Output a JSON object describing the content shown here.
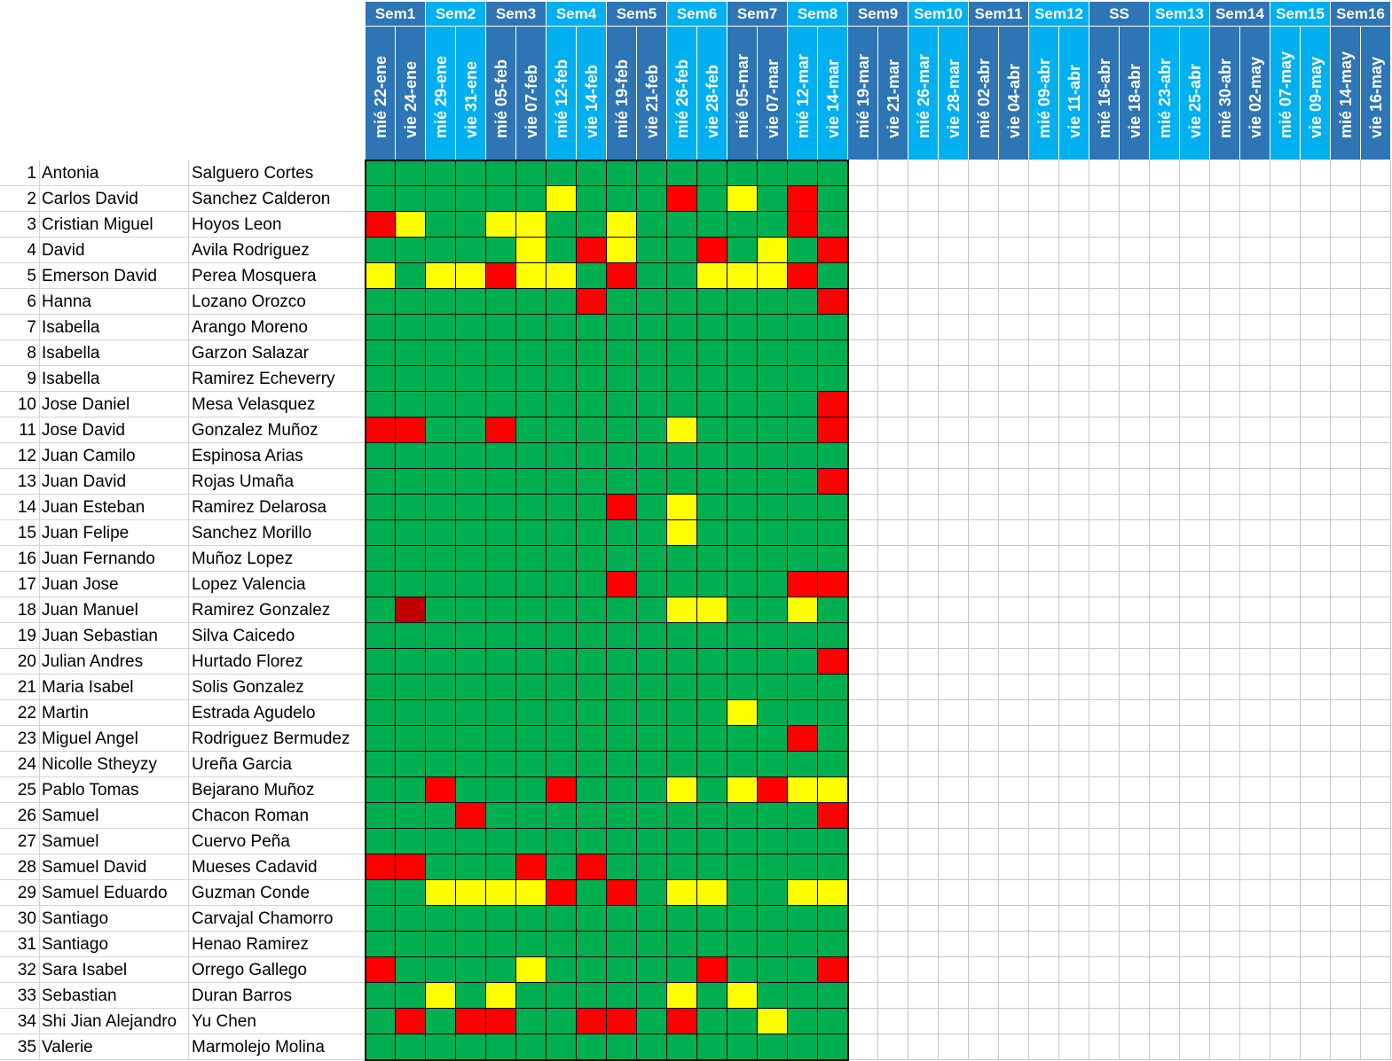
{
  "weeks": [
    {
      "label": "Sem1",
      "span": 2
    },
    {
      "label": "Sem2",
      "span": 2
    },
    {
      "label": "Sem3",
      "span": 2
    },
    {
      "label": "Sem4",
      "span": 2
    },
    {
      "label": "Sem5",
      "span": 2
    },
    {
      "label": "Sem6",
      "span": 2
    },
    {
      "label": "Sem7",
      "span": 2
    },
    {
      "label": "Sem8",
      "span": 2
    },
    {
      "label": "Sem9",
      "span": 2
    },
    {
      "label": "Sem10",
      "span": 2
    },
    {
      "label": "Sem11",
      "span": 2
    },
    {
      "label": "Sem12",
      "span": 2
    },
    {
      "label": "SS",
      "span": 2
    },
    {
      "label": "Sem13",
      "span": 2
    },
    {
      "label": "Sem14",
      "span": 2
    },
    {
      "label": "Sem15",
      "span": 2
    },
    {
      "label": "Sem16",
      "span": 2
    }
  ],
  "dates": [
    "mié 22-ene",
    "vie 24-ene",
    "mié 29-ene",
    "vie 31-ene",
    "mié 05-feb",
    "vie 07-feb",
    "mié 12-feb",
    "vie 14-feb",
    "mié 19-feb",
    "vie 21-feb",
    "mié 26-feb",
    "vie 28-feb",
    "mié 05-mar",
    "vie 07-mar",
    "mié 12-mar",
    "vie 14-mar",
    "mié 19-mar",
    "vie 21-mar",
    "mié 26-mar",
    "vie 28-mar",
    "mié 02-abr",
    "vie 04-abr",
    "mié 09-abr",
    "vie 11-abr",
    "mié 16-abr",
    "vie 18-abr",
    "mié 23-abr",
    "vie 25-abr",
    "mié 30-abr",
    "vie 02-may",
    "mié 07-may",
    "vie 09-may",
    "mié 14-may",
    "vie 16-may"
  ],
  "legend_colors": {
    "G": "#00b050",
    "Y": "#ffff00",
    "R": "#ff0000",
    "D": "#c00000"
  },
  "header_colors": {
    "week_light": "#00b0f0",
    "week_dark": "#2e75b6"
  },
  "students": [
    {
      "n": "1",
      "first": "Antonia",
      "last": "Salguero Cortes",
      "marks": "GGGGGGGGGGGGGGGG"
    },
    {
      "n": "2",
      "first": "Carlos David",
      "last": "Sanchez Calderon",
      "marks": "GGGGGGYGGGRGYGRG"
    },
    {
      "n": "3",
      "first": "Cristian Miguel",
      "last": "Hoyos Leon",
      "marks": "RYGGYYGGYGGGGGRG"
    },
    {
      "n": "4",
      "first": "David",
      "last": "Avila Rodriguez",
      "marks": "GGGGGYGRYGGRGYGR"
    },
    {
      "n": "5",
      "first": "Emerson David",
      "last": "Perea Mosquera",
      "marks": "YGYYRYYGRGGYYYRG"
    },
    {
      "n": "6",
      "first": "Hanna",
      "last": "Lozano Orozco",
      "marks": "GGGGGGGRGGGGGGGR"
    },
    {
      "n": "7",
      "first": "Isabella",
      "last": "Arango Moreno",
      "marks": "GGGGGGGGGGGGGGGG"
    },
    {
      "n": "8",
      "first": "Isabella",
      "last": "Garzon Salazar",
      "marks": "GGGGGGGGGGGGGGGG"
    },
    {
      "n": "9",
      "first": "Isabella",
      "last": "Ramirez Echeverry",
      "marks": "GGGGGGGGGGGGGGGG"
    },
    {
      "n": "10",
      "first": "Jose Daniel",
      "last": "Mesa Velasquez",
      "marks": "GGGGGGGGGGGGGGGR"
    },
    {
      "n": "11",
      "first": "Jose David",
      "last": "Gonzalez Muñoz",
      "marks": "RRGGRGGGGGYGGGGR"
    },
    {
      "n": "12",
      "first": "Juan Camilo",
      "last": "Espinosa Arias",
      "marks": "GGGGGGGGGGGGGGGG"
    },
    {
      "n": "13",
      "first": "Juan David",
      "last": "Rojas Umaña",
      "marks": "GGGGGGGGGGGGGGGR"
    },
    {
      "n": "14",
      "first": "Juan Esteban",
      "last": "Ramirez Delarosa",
      "marks": "GGGGGGGGRGYGGGGG"
    },
    {
      "n": "15",
      "first": "Juan Felipe",
      "last": "Sanchez Morillo",
      "marks": "GGGGGGGGGGYGGGGG"
    },
    {
      "n": "16",
      "first": "Juan Fernando",
      "last": "Muñoz Lopez",
      "marks": "GGGGGGGGGGGGGGGG"
    },
    {
      "n": "17",
      "first": "Juan Jose",
      "last": "Lopez Valencia",
      "marks": "GGGGGGGGRGGGGGRR"
    },
    {
      "n": "18",
      "first": "Juan Manuel",
      "last": "Ramirez Gonzalez",
      "marks": "GDGGGGGGGGYYGGYG"
    },
    {
      "n": "19",
      "first": "Juan Sebastian",
      "last": "Silva Caicedo",
      "marks": "GGGGGGGGGGGGGGGG"
    },
    {
      "n": "20",
      "first": "Julian Andres",
      "last": "Hurtado Florez",
      "marks": "GGGGGGGGGGGGGGGR"
    },
    {
      "n": "21",
      "first": "Maria Isabel",
      "last": "Solis Gonzalez",
      "marks": "GGGGGGGGGGGGGGGG"
    },
    {
      "n": "22",
      "first": "Martin",
      "last": "Estrada Agudelo",
      "marks": "GGGGGGGGGGGGYGGG"
    },
    {
      "n": "23",
      "first": "Miguel Angel",
      "last": "Rodriguez Bermudez",
      "marks": "GGGGGGGGGGGGGGRG"
    },
    {
      "n": "24",
      "first": "Nicolle Stheyzy",
      "last": "Ureña Garcia",
      "marks": "GGGGGGGGGGGGGGGG"
    },
    {
      "n": "25",
      "first": "Pablo Tomas",
      "last": "Bejarano Muñoz",
      "marks": "GGRGGGRGGGYGYRYY"
    },
    {
      "n": "26",
      "first": "Samuel",
      "last": "Chacon Roman",
      "marks": "GGGRGGGGGGGGGGGR"
    },
    {
      "n": "27",
      "first": "Samuel",
      "last": "Cuervo Peña",
      "marks": "GGGGGGGGGGGGGGGG"
    },
    {
      "n": "28",
      "first": "Samuel David",
      "last": "Mueses Cadavid",
      "marks": "RRGGGRGRGGGGGGGG"
    },
    {
      "n": "29",
      "first": "Samuel Eduardo",
      "last": "Guzman Conde",
      "marks": "GGYYYYRGRGYYGGYY"
    },
    {
      "n": "30",
      "first": "Santiago",
      "last": "Carvajal Chamorro",
      "marks": "GGGGGGGGGGGGGGGG"
    },
    {
      "n": "31",
      "first": "Santiago",
      "last": "Henao Ramirez",
      "marks": "GGGGGGGGGGGGGGGG"
    },
    {
      "n": "32",
      "first": "Sara Isabel",
      "last": "Orrego Gallego",
      "marks": "RGGGGYGGGGGRGGGR"
    },
    {
      "n": "33",
      "first": "Sebastian",
      "last": "Duran Barros",
      "marks": "GGYGYGGGGGYGYGGG"
    },
    {
      "n": "34",
      "first": "Shi Jian Alejandro",
      "last": "Yu Chen",
      "marks": "GRGRRGGRRGRGGYGG"
    },
    {
      "n": "35",
      "first": "Valerie",
      "last": "Marmolejo Molina",
      "marks": "GGGGGGGGGGGGGGGG"
    }
  ]
}
